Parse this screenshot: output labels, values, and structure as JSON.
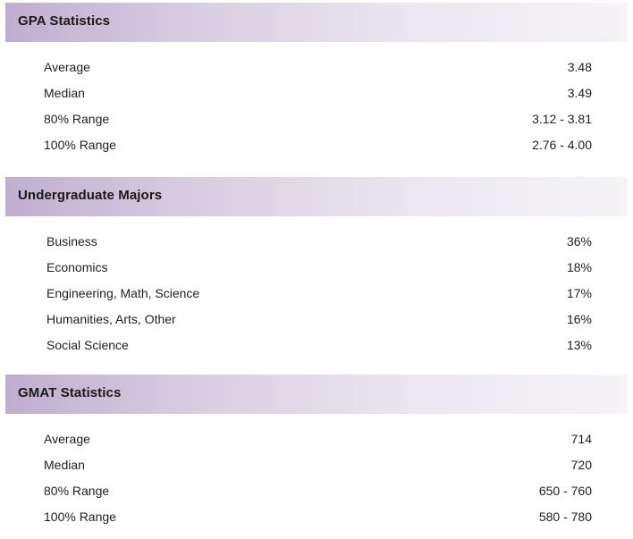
{
  "gpa": {
    "title": "GPA Statistics",
    "rows": [
      {
        "label": "Average",
        "value": "3.48"
      },
      {
        "label": "Median",
        "value": "3.49"
      },
      {
        "label": "80% Range",
        "value": "3.12 - 3.81"
      },
      {
        "label": "100% Range",
        "value": "2.76 - 4.00"
      }
    ]
  },
  "majors": {
    "title": "Undergraduate Majors",
    "rows": [
      {
        "label": "Business",
        "value": "36%"
      },
      {
        "label": "Economics",
        "value": "18%"
      },
      {
        "label": "Engineering, Math, Science",
        "value": "17%"
      },
      {
        "label": "Humanities, Arts, Other",
        "value": "16%"
      },
      {
        "label": "Social Science",
        "value": "13%"
      }
    ]
  },
  "gmat": {
    "title": "GMAT Statistics",
    "rows": [
      {
        "label": "Average",
        "value": "714"
      },
      {
        "label": "Median",
        "value": "720"
      },
      {
        "label": "80% Range",
        "value": "650 - 760"
      },
      {
        "label": "100% Range",
        "value": "580 - 780"
      }
    ]
  },
  "colors": {
    "header_gradient_start": "#c0aed0",
    "header_gradient_end": "#f6f4f7",
    "text": "#1f1f1f"
  }
}
